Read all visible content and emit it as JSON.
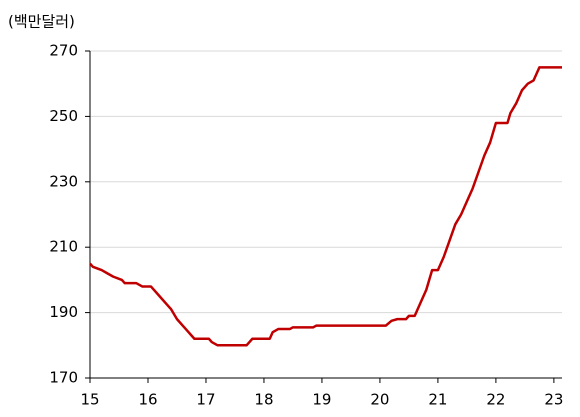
{
  "chart_data": {
    "type": "line",
    "y_unit_label": "(백만달러)",
    "x": [
      15.0,
      15.05,
      15.2,
      15.3,
      15.4,
      15.55,
      15.6,
      15.8,
      15.9,
      16.05,
      16.1,
      16.2,
      16.3,
      16.4,
      16.5,
      16.6,
      16.7,
      16.75,
      16.8,
      17.05,
      17.1,
      17.2,
      17.7,
      17.75,
      17.8,
      18.1,
      18.15,
      18.25,
      18.45,
      18.5,
      18.85,
      18.9,
      20.1,
      20.2,
      20.3,
      20.45,
      20.5,
      20.6,
      20.7,
      20.8,
      20.9,
      21.0,
      21.1,
      21.2,
      21.3,
      21.4,
      21.5,
      21.6,
      21.7,
      21.8,
      21.9,
      22.0,
      22.2,
      22.25,
      22.35,
      22.45,
      22.55,
      22.65,
      22.75,
      23.14
    ],
    "series": [
      {
        "color": "#c00000",
        "values": [
          205,
          204,
          203,
          202,
          201,
          200,
          199,
          199,
          198,
          198,
          197,
          195,
          193,
          191,
          188,
          186,
          184,
          183,
          182,
          182,
          181,
          180,
          180,
          181,
          182,
          182,
          184,
          185,
          185,
          185.5,
          185.5,
          186,
          186,
          187.5,
          188,
          188,
          189,
          189,
          193,
          197,
          203,
          203,
          207,
          212,
          217,
          220,
          224,
          228,
          233,
          238,
          242,
          248,
          248,
          251,
          254,
          258,
          260,
          261,
          265,
          265
        ]
      }
    ],
    "xlim": [
      15,
      23.14
    ],
    "xticks": [
      15,
      16,
      17,
      18,
      19,
      20,
      21,
      22,
      23
    ],
    "ylim": [
      170,
      270
    ],
    "yticks": [
      170,
      190,
      210,
      230,
      250,
      270
    ],
    "grid": true
  }
}
